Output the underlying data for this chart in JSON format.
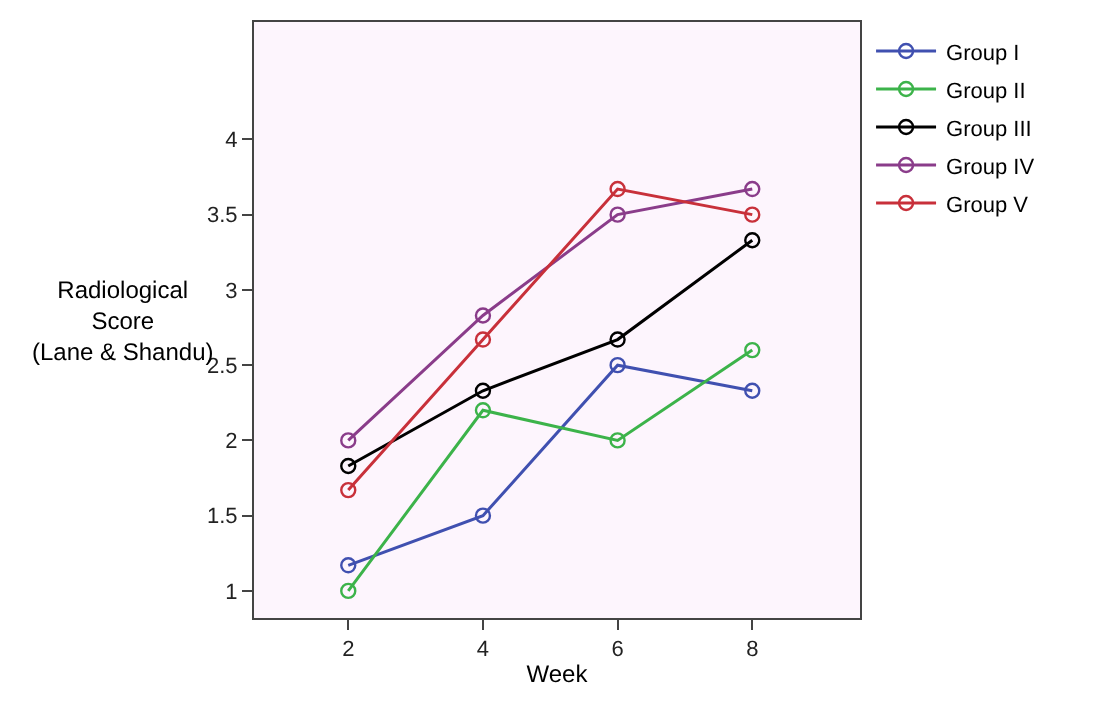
{
  "chart_data": {
    "type": "line",
    "xlabel": "Week",
    "ylabel": "Radiological\nScore\n(Lane & Shandu)",
    "x": [
      2,
      4,
      6,
      8
    ],
    "series": [
      {
        "name": "Group I",
        "color": "#4050b0",
        "values": [
          1.17,
          1.5,
          2.5,
          2.33
        ]
      },
      {
        "name": "Group II",
        "color": "#3cb34a",
        "values": [
          1.0,
          2.2,
          2.0,
          2.6
        ]
      },
      {
        "name": "Group III",
        "color": "#000000",
        "values": [
          1.83,
          2.33,
          2.67,
          3.33
        ]
      },
      {
        "name": "Group IV",
        "color": "#8a3c8a",
        "values": [
          2.0,
          2.83,
          3.5,
          3.67
        ]
      },
      {
        "name": "Group V",
        "color": "#c8303a",
        "values": [
          1.67,
          2.67,
          3.67,
          3.5
        ]
      }
    ],
    "xlim": [
      0.6,
      9.6
    ],
    "xticks": [
      2,
      4,
      6,
      8
    ],
    "ylim": [
      0.82,
      4.78
    ],
    "yticks": [
      1,
      1.5,
      2,
      2.5,
      3,
      3.5,
      4
    ],
    "grid": false,
    "legend": "right",
    "marker": "circle",
    "line_style": "solid"
  }
}
